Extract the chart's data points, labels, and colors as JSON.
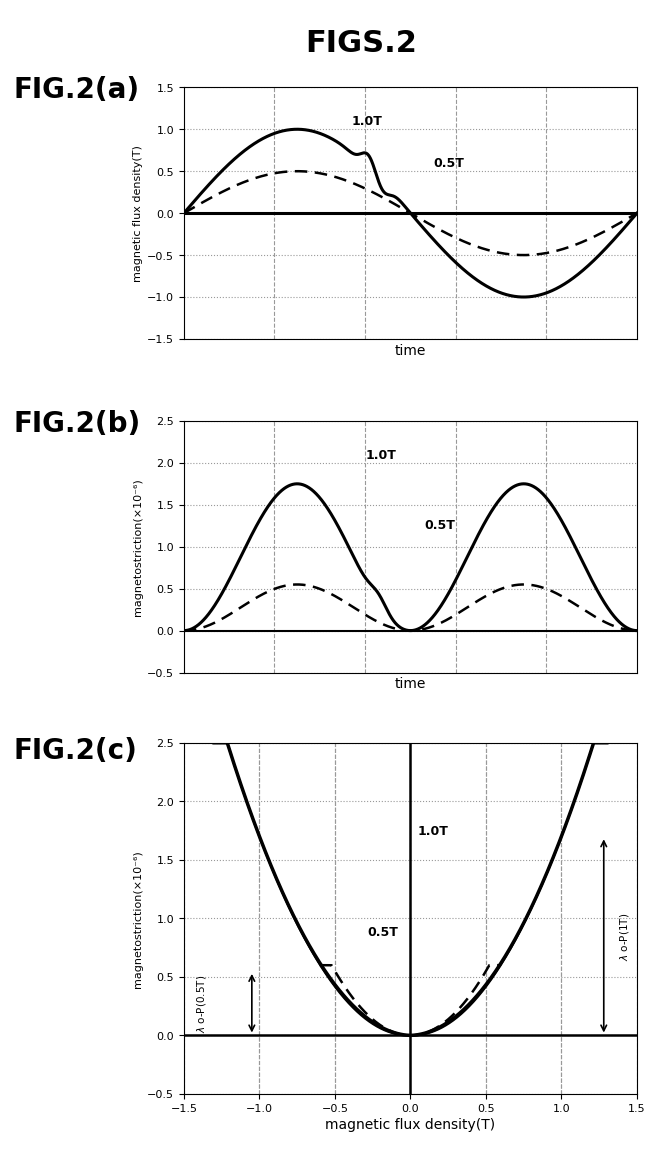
{
  "fig_title": "FIGS.2",
  "fig_title_fontsize": 22,
  "panel_labels": [
    "FIG.2(a)",
    "FIG.2(b)",
    "FIG.2(c)"
  ],
  "panel_label_fontsize": 20,
  "panel_a": {
    "ylabel": "magnetic flux density(T)",
    "xlabel": "time",
    "ylim": [
      -1.5,
      1.5
    ],
    "yticks": [
      -1.5,
      -1.0,
      -0.5,
      0,
      0.5,
      1.0,
      1.5
    ]
  },
  "panel_b": {
    "ylabel": "magnetostriction(×10⁻⁶)",
    "xlabel": "time",
    "ylim": [
      -0.5,
      2.5
    ],
    "yticks": [
      -0.5,
      0,
      0.5,
      1.0,
      1.5,
      2.0,
      2.5
    ]
  },
  "panel_c": {
    "ylabel": "magnetostriction(×10⁻⁶)",
    "xlabel": "magnetic flux density(T)",
    "xlim": [
      -1.5,
      1.5
    ],
    "ylim": [
      -0.5,
      2.5
    ],
    "xticks": [
      -1.5,
      -1.0,
      -0.5,
      0,
      0.5,
      1.0,
      1.5
    ],
    "yticks": [
      -0.5,
      0,
      0.5,
      1.0,
      1.5,
      2.0,
      2.5
    ]
  },
  "grid_dash_color": "#999999",
  "grid_dot_color": "#999999",
  "background_color": "#ffffff",
  "text_color": "#000000"
}
